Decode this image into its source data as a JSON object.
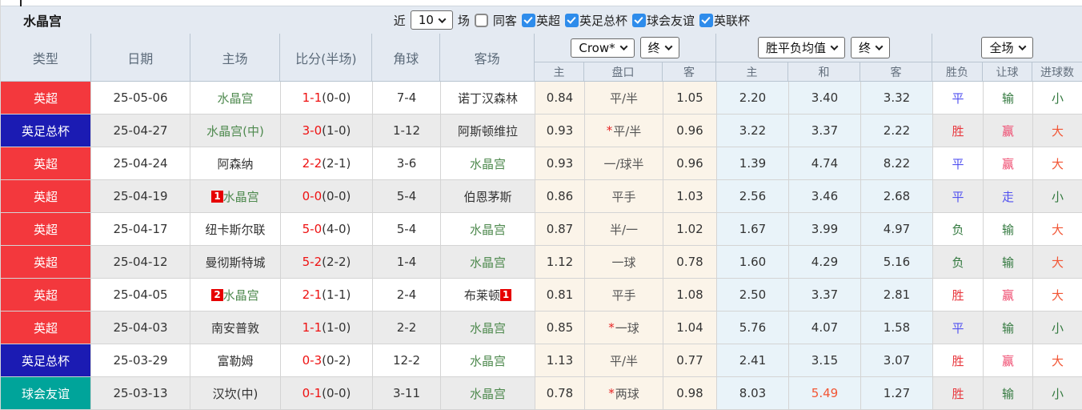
{
  "title": "水晶宫",
  "filters": {
    "recent_label": "近",
    "recent_value": "10",
    "matches_label": "场",
    "same_away_label": "同客",
    "leagues": [
      {
        "label": "英超"
      },
      {
        "label": "英足总杯"
      },
      {
        "label": "球会友谊"
      },
      {
        "label": "英联杯"
      }
    ]
  },
  "header": {
    "type": "类型",
    "date": "日期",
    "home": "主场",
    "score": "比分(半场)",
    "corner": "角球",
    "away": "客场",
    "odds_company": "Crow*",
    "odds_time": "终",
    "avg_label": "胜平负均值",
    "avg_time": "终",
    "scope": "全场",
    "sub_home": "主",
    "sub_handicap": "盘口",
    "sub_away": "客",
    "sub_avg_home": "主",
    "sub_avg_draw": "和",
    "sub_avg_away": "客",
    "sub_wdl": "胜负",
    "sub_let": "让球",
    "sub_goals": "进球数"
  },
  "colors": {
    "league_epl": "#f3383d",
    "league_facup": "#1b1bb3",
    "league_friendly": "#00a49a",
    "team_highlight": "#4f8a4f",
    "score_red": "#ee1111",
    "odds_bg": "#fbf4e9",
    "avg_bg": "#e9f3f9",
    "header_bg": "#e4eaf2"
  },
  "rows": [
    {
      "type": "英超",
      "type_class": "bg-red",
      "date": "25-05-06",
      "home": {
        "badge": "",
        "name": "水晶宫",
        "cls": "t-green",
        "badge_after": ""
      },
      "score": "1-1",
      "half": "(0-0)",
      "corner": "7-4",
      "away": {
        "badge": "",
        "name": "诺丁汉森林",
        "cls": "t-dark",
        "badge_after": ""
      },
      "odds_home": "0.84",
      "star": "",
      "handicap": "平/半",
      "odds_away": "1.05",
      "avg_home": "2.20",
      "avg_draw": "3.40",
      "avg_draw_cls": "",
      "avg_away": "3.32",
      "wdl": "平",
      "wdl_cls": "r-blue",
      "let": "输",
      "let_cls": "r-green",
      "goal": "小",
      "goal_cls": "r-green"
    },
    {
      "type": "英足总杯",
      "type_class": "bg-blue",
      "date": "25-04-27",
      "home": {
        "badge": "",
        "name": "水晶宫(中)",
        "cls": "t-green",
        "badge_after": ""
      },
      "score": "3-0",
      "half": "(1-0)",
      "corner": "1-12",
      "away": {
        "badge": "",
        "name": "阿斯顿维拉",
        "cls": "t-dark",
        "badge_after": ""
      },
      "odds_home": "0.93",
      "star": "*",
      "handicap": "平/半",
      "odds_away": "0.96",
      "avg_home": "3.22",
      "avg_draw": "3.37",
      "avg_draw_cls": "",
      "avg_away": "2.22",
      "wdl": "胜",
      "wdl_cls": "r-red",
      "let": "赢",
      "let_cls": "r-pink",
      "goal": "大",
      "goal_cls": "r-orange"
    },
    {
      "type": "英超",
      "type_class": "bg-red",
      "date": "25-04-24",
      "home": {
        "badge": "",
        "name": "阿森纳",
        "cls": "t-dark",
        "badge_after": ""
      },
      "score": "2-2",
      "half": "(2-1)",
      "corner": "3-6",
      "away": {
        "badge": "",
        "name": "水晶宫",
        "cls": "t-green",
        "badge_after": ""
      },
      "odds_home": "0.93",
      "star": "",
      "handicap": "一/球半",
      "odds_away": "0.96",
      "avg_home": "1.39",
      "avg_draw": "4.74",
      "avg_draw_cls": "",
      "avg_away": "8.22",
      "wdl": "平",
      "wdl_cls": "r-blue",
      "let": "赢",
      "let_cls": "r-pink",
      "goal": "大",
      "goal_cls": "r-orange"
    },
    {
      "type": "英超",
      "type_class": "bg-red",
      "date": "25-04-19",
      "home": {
        "badge": "1",
        "name": "水晶宫",
        "cls": "t-green",
        "badge_after": ""
      },
      "score": "0-0",
      "half": "(0-0)",
      "corner": "5-4",
      "away": {
        "badge": "",
        "name": "伯恩茅斯",
        "cls": "t-dark",
        "badge_after": ""
      },
      "odds_home": "0.86",
      "star": "",
      "handicap": "平手",
      "odds_away": "1.03",
      "avg_home": "2.56",
      "avg_draw": "3.46",
      "avg_draw_cls": "",
      "avg_away": "2.68",
      "wdl": "平",
      "wdl_cls": "r-blue",
      "let": "走",
      "let_cls": "r-blue",
      "goal": "小",
      "goal_cls": "r-green"
    },
    {
      "type": "英超",
      "type_class": "bg-red",
      "date": "25-04-17",
      "home": {
        "badge": "",
        "name": "纽卡斯尔联",
        "cls": "t-dark",
        "badge_after": ""
      },
      "score": "5-0",
      "half": "(4-0)",
      "corner": "5-4",
      "away": {
        "badge": "",
        "name": "水晶宫",
        "cls": "t-green",
        "badge_after": ""
      },
      "odds_home": "0.87",
      "star": "",
      "handicap": "半/一",
      "odds_away": "1.02",
      "avg_home": "1.67",
      "avg_draw": "3.99",
      "avg_draw_cls": "",
      "avg_away": "4.97",
      "wdl": "负",
      "wdl_cls": "r-green",
      "let": "输",
      "let_cls": "r-green",
      "goal": "大",
      "goal_cls": "r-orange"
    },
    {
      "type": "英超",
      "type_class": "bg-red",
      "date": "25-04-12",
      "home": {
        "badge": "",
        "name": "曼彻斯特城",
        "cls": "t-dark",
        "badge_after": ""
      },
      "score": "5-2",
      "half": "(2-2)",
      "corner": "1-4",
      "away": {
        "badge": "",
        "name": "水晶宫",
        "cls": "t-green",
        "badge_after": ""
      },
      "odds_home": "1.12",
      "star": "",
      "handicap": "一球",
      "odds_away": "0.78",
      "avg_home": "1.60",
      "avg_draw": "4.29",
      "avg_draw_cls": "",
      "avg_away": "5.16",
      "wdl": "负",
      "wdl_cls": "r-green",
      "let": "输",
      "let_cls": "r-green",
      "goal": "大",
      "goal_cls": "r-orange"
    },
    {
      "type": "英超",
      "type_class": "bg-red",
      "date": "25-04-05",
      "home": {
        "badge": "2",
        "name": "水晶宫",
        "cls": "t-green",
        "badge_after": ""
      },
      "score": "2-1",
      "half": "(1-1)",
      "corner": "2-4",
      "away": {
        "badge": "",
        "name": "布莱顿",
        "cls": "t-dark",
        "badge_after": "1"
      },
      "odds_home": "0.81",
      "star": "",
      "handicap": "平手",
      "odds_away": "1.08",
      "avg_home": "2.50",
      "avg_draw": "3.37",
      "avg_draw_cls": "",
      "avg_away": "2.81",
      "wdl": "胜",
      "wdl_cls": "r-red",
      "let": "赢",
      "let_cls": "r-pink",
      "goal": "大",
      "goal_cls": "r-orange"
    },
    {
      "type": "英超",
      "type_class": "bg-red",
      "date": "25-04-03",
      "home": {
        "badge": "",
        "name": "南安普敦",
        "cls": "t-dark",
        "badge_after": ""
      },
      "score": "1-1",
      "half": "(1-0)",
      "corner": "2-2",
      "away": {
        "badge": "",
        "name": "水晶宫",
        "cls": "t-green",
        "badge_after": ""
      },
      "odds_home": "0.85",
      "star": "*",
      "handicap": "一球",
      "odds_away": "1.04",
      "avg_home": "5.76",
      "avg_draw": "4.07",
      "avg_draw_cls": "",
      "avg_away": "1.58",
      "wdl": "平",
      "wdl_cls": "r-blue",
      "let": "输",
      "let_cls": "r-green",
      "goal": "小",
      "goal_cls": "r-green"
    },
    {
      "type": "英足总杯",
      "type_class": "bg-blue",
      "date": "25-03-29",
      "home": {
        "badge": "",
        "name": "富勒姆",
        "cls": "t-dark",
        "badge_after": ""
      },
      "score": "0-3",
      "half": "(0-2)",
      "corner": "12-2",
      "away": {
        "badge": "",
        "name": "水晶宫",
        "cls": "t-green",
        "badge_after": ""
      },
      "odds_home": "1.13",
      "star": "",
      "handicap": "平/半",
      "odds_away": "0.77",
      "avg_home": "2.41",
      "avg_draw": "3.15",
      "avg_draw_cls": "",
      "avg_away": "3.07",
      "wdl": "胜",
      "wdl_cls": "r-red",
      "let": "赢",
      "let_cls": "r-pink",
      "goal": "大",
      "goal_cls": "r-orange"
    },
    {
      "type": "球会友谊",
      "type_class": "bg-teal",
      "date": "25-03-13",
      "home": {
        "badge": "",
        "name": "汉坎(中)",
        "cls": "t-dark",
        "badge_after": ""
      },
      "score": "0-1",
      "half": "(0-0)",
      "corner": "3-11",
      "away": {
        "badge": "",
        "name": "水晶宫",
        "cls": "t-green",
        "badge_after": ""
      },
      "odds_home": "0.78",
      "star": "*",
      "handicap": "两球",
      "odds_away": "0.98",
      "avg_home": "8.03",
      "avg_draw": "5.49",
      "avg_draw_cls": "r-orange",
      "avg_away": "1.27",
      "wdl": "胜",
      "wdl_cls": "r-red",
      "let": "输",
      "let_cls": "r-green",
      "goal": "小",
      "goal_cls": "r-green"
    }
  ]
}
